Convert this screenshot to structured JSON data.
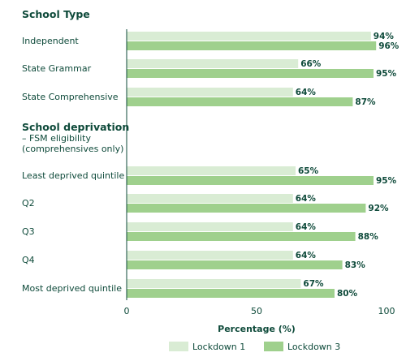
{
  "chart_data": {
    "type": "bar",
    "orientation": "horizontal",
    "sections": [
      {
        "title": "School Type",
        "subtitle": [],
        "categories": [
          "Independent",
          "State Grammar",
          "State Comprehensive"
        ]
      },
      {
        "title": "School deprivation",
        "subtitle": [
          "– FSM eligibility",
          "(comprehensives only)"
        ],
        "categories": [
          "Least deprived quintile",
          "Q2",
          "Q3",
          "Q4",
          "Most deprived quintile"
        ]
      }
    ],
    "categories": [
      "Independent",
      "State Grammar",
      "State Comprehensive",
      "Least deprived quintile",
      "Q2",
      "Q3",
      "Q4",
      "Most deprived quintile"
    ],
    "series": [
      {
        "name": "Lockdown 1",
        "color": "#d9ecd4",
        "values": [
          94,
          66,
          64,
          65,
          64,
          64,
          64,
          67
        ],
        "labels": [
          "94%",
          "66%",
          "64%",
          "65%",
          "64%",
          "64%",
          "64%",
          "67%"
        ]
      },
      {
        "name": "Lockdown 3",
        "color": "#9fd08d",
        "values": [
          96,
          95,
          87,
          95,
          92,
          88,
          83,
          80
        ],
        "labels": [
          "96%",
          "95%",
          "87%",
          "95%",
          "92%",
          "88%",
          "83%",
          "80%"
        ]
      }
    ],
    "xlim": [
      0,
      100
    ],
    "xticks": [
      0,
      50,
      100
    ],
    "xlabel": "Percentage (%)",
    "legend_position": "bottom-center",
    "grid": false
  }
}
